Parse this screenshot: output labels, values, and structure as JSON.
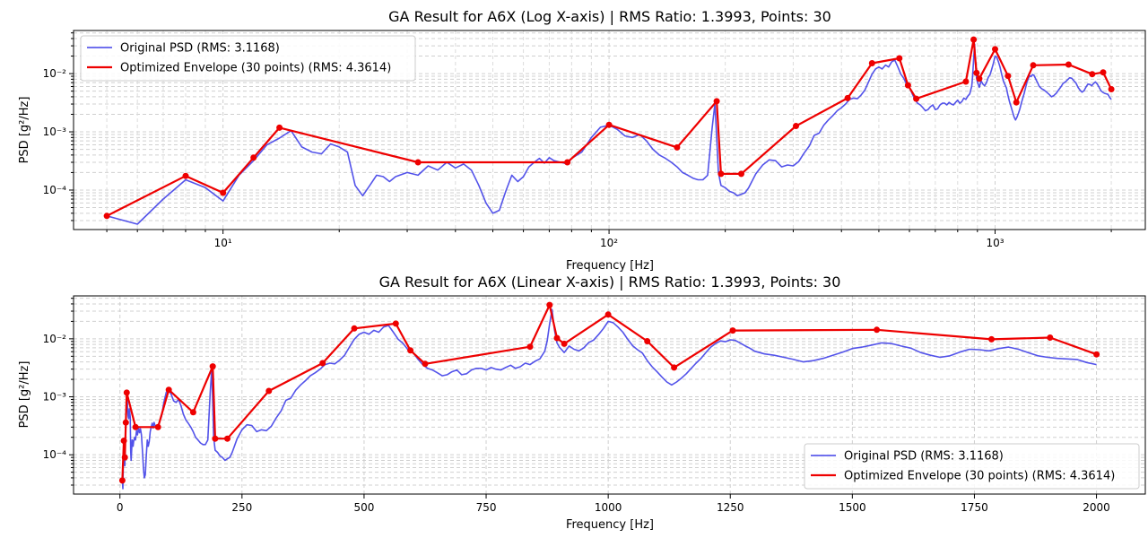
{
  "charts": [
    {
      "title": "GA Result for A6X (Log X-axis) | RMS Ratio: 1.3993, Points: 30",
      "xlabel": "Frequency [Hz]",
      "ylabel": "PSD [g²/Hz]",
      "xscale": "log",
      "legend_position": "upper left"
    },
    {
      "title": "GA Result for A6X (Linear X-axis) | RMS Ratio: 1.3993, Points: 30",
      "xlabel": "Frequency [Hz]",
      "ylabel": "PSD [g²/Hz]",
      "xscale": "linear",
      "legend_position": "lower right"
    }
  ],
  "chart_data": [
    {
      "type": "line",
      "title": "GA Result for A6X (Log X-axis) | RMS Ratio: 1.3993, Points: 30",
      "xlabel": "Frequency [Hz]",
      "ylabel": "PSD [g²/Hz]",
      "xscale": "log",
      "yscale": "log",
      "xlim": [
        4.1,
        2450
      ],
      "ylim": [
        2.1e-05,
        0.055
      ],
      "xticks": [
        10,
        100,
        1000
      ],
      "xtick_labels": [
        "10¹",
        "10²",
        "10³"
      ],
      "yticks": [
        0.0001,
        0.001,
        0.01
      ],
      "ytick_labels": [
        "10⁻⁴",
        "10⁻³",
        "10⁻²"
      ],
      "grid": true,
      "legend": "upper-left",
      "series": [
        {
          "name": "Original PSD (RMS: 3.1168)",
          "color": "#4040e8",
          "x": [
            5,
            6,
            7,
            8,
            9,
            10,
            11,
            12,
            13,
            14,
            15,
            16,
            17,
            18,
            19,
            20,
            21,
            22,
            23,
            24,
            25,
            26,
            27,
            28,
            30,
            32,
            34,
            36,
            38,
            40,
            42,
            44,
            46,
            48,
            50,
            52,
            54,
            56,
            58,
            60,
            62,
            64,
            66,
            68,
            70,
            72,
            75,
            78,
            80,
            85,
            90,
            95,
            100,
            105,
            110,
            115,
            120,
            125,
            130,
            135,
            140,
            145,
            150,
            155,
            160,
            165,
            170,
            175,
            180,
            185,
            188,
            190,
            192,
            195,
            200,
            205,
            210,
            215,
            220,
            225,
            230,
            240,
            250,
            260,
            270,
            280,
            290,
            300,
            310,
            320,
            330,
            340,
            350,
            360,
            370,
            380,
            390,
            400,
            410,
            420,
            430,
            440,
            450,
            460,
            470,
            480,
            490,
            500,
            510,
            520,
            530,
            540,
            550,
            560,
            570,
            580,
            590,
            600,
            610,
            620,
            630,
            640,
            650,
            660,
            670,
            680,
            690,
            700,
            710,
            720,
            730,
            740,
            750,
            760,
            770,
            780,
            790,
            800,
            810,
            820,
            830,
            840,
            850,
            860,
            870,
            875,
            880,
            885,
            890,
            895,
            900,
            910,
            920,
            930,
            940,
            950,
            960,
            970,
            980,
            990,
            1000,
            1010,
            1020,
            1030,
            1040,
            1050,
            1060,
            1070,
            1080,
            1090,
            1100,
            1110,
            1120,
            1130,
            1140,
            1150,
            1160,
            1170,
            1180,
            1190,
            1200,
            1210,
            1220,
            1230,
            1240,
            1250,
            1260,
            1270,
            1280,
            1290,
            1300,
            1320,
            1340,
            1360,
            1380,
            1400,
            1420,
            1440,
            1460,
            1480,
            1500,
            1520,
            1540,
            1560,
            1580,
            1600,
            1620,
            1640,
            1660,
            1680,
            1700,
            1720,
            1740,
            1760,
            1780,
            1800,
            1820,
            1840,
            1860,
            1880,
            1900,
            1920,
            1940,
            1960,
            1980,
            2000
          ],
          "y": [
            3.6e-05,
            2.6e-05,
            7e-05,
            0.00015,
            0.00011,
            6.5e-05,
            0.00018,
            0.00032,
            0.0006,
            0.00078,
            0.00105,
            0.00055,
            0.00045,
            0.00042,
            0.00062,
            0.00055,
            0.00045,
            0.00012,
            8e-05,
            0.00012,
            0.00018,
            0.00017,
            0.00014,
            0.00017,
            0.0002,
            0.00018,
            0.00026,
            0.00022,
            0.0003,
            0.00024,
            0.00028,
            0.00022,
            0.00012,
            6e-05,
            4e-05,
            4.5e-05,
            9.5e-05,
            0.00018,
            0.00014,
            0.00017,
            0.00025,
            0.0003,
            0.00035,
            0.00029,
            0.00036,
            0.00032,
            0.0003,
            0.00028,
            0.00035,
            0.00045,
            0.0008,
            0.0012,
            0.0013,
            0.0011,
            0.00085,
            0.0008,
            0.0009,
            0.0007,
            0.0005,
            0.0004,
            0.00035,
            0.0003,
            0.00025,
            0.0002,
            0.00018,
            0.00016,
            0.00015,
            0.00015,
            0.00018,
            0.0012,
            0.003,
            0.0008,
            0.0002,
            0.00012,
            0.00011,
            9.5e-05,
            9e-05,
            8e-05,
            8.5e-05,
            9e-05,
            0.00011,
            0.00019,
            0.00027,
            0.00033,
            0.00032,
            0.00025,
            0.00027,
            0.00026,
            0.00031,
            0.00043,
            0.00057,
            0.00087,
            0.00095,
            0.0013,
            0.0016,
            0.0019,
            0.0023,
            0.0026,
            0.003,
            0.0036,
            0.0038,
            0.0037,
            0.0043,
            0.0052,
            0.0072,
            0.0098,
            0.012,
            0.013,
            0.012,
            0.014,
            0.013,
            0.016,
            0.017,
            0.013,
            0.0098,
            0.0083,
            0.0065,
            0.0058,
            0.0045,
            0.0036,
            0.0031,
            0.0029,
            0.0026,
            0.0023,
            0.0024,
            0.0027,
            0.0029,
            0.0024,
            0.0025,
            0.0029,
            0.0031,
            0.0031,
            0.0029,
            0.0032,
            0.003,
            0.0029,
            0.0032,
            0.0035,
            0.0031,
            0.0033,
            0.0038,
            0.0036,
            0.0041,
            0.0045,
            0.0061,
            0.0092,
            0.018,
            0.032,
            0.014,
            0.0085,
            0.0072,
            0.0058,
            0.0075,
            0.0066,
            0.0062,
            0.007,
            0.0086,
            0.0095,
            0.0118,
            0.015,
            0.02,
            0.019,
            0.016,
            0.013,
            0.0098,
            0.0076,
            0.0065,
            0.0057,
            0.0042,
            0.0033,
            0.0027,
            0.0022,
            0.0018,
            0.0016,
            0.0018,
            0.0021,
            0.0025,
            0.0031,
            0.0038,
            0.0046,
            0.0058,
            0.0072,
            0.0083,
            0.0092,
            0.0089,
            0.0096,
            0.0094,
            0.0085,
            0.0076,
            0.0069,
            0.0061,
            0.0055,
            0.0052,
            0.0048,
            0.0044,
            0.004,
            0.0042,
            0.0046,
            0.0052,
            0.0059,
            0.0068,
            0.0072,
            0.0078,
            0.0085,
            0.0083,
            0.0075,
            0.0069,
            0.0058,
            0.0052,
            0.0048,
            0.0051,
            0.0059,
            0.0066,
            0.0065,
            0.0062,
            0.0068,
            0.0072,
            0.0066,
            0.0058,
            0.0051,
            0.0048,
            0.0046,
            0.0045,
            0.0044,
            0.0039,
            0.0036
          ]
        },
        {
          "name": "Optimized Envelope (30 points) (RMS: 4.3614)",
          "color": "#ee0000",
          "x": [
            5,
            8,
            10,
            12,
            14,
            32,
            78,
            100,
            150,
            190,
            195,
            220,
            305,
            415,
            480,
            565,
            595,
            625,
            840,
            880,
            895,
            910,
            1000,
            1080,
            1135,
            1255,
            1550,
            1785,
            1905,
            2000
          ],
          "y": [
            3.6e-05,
            0.000175,
            9e-05,
            0.00036,
            0.00118,
            0.0003,
            0.0003,
            0.00132,
            0.00054,
            0.00335,
            0.00019,
            0.00019,
            0.00126,
            0.0038,
            0.0151,
            0.0183,
            0.0063,
            0.0037,
            0.0073,
            0.0384,
            0.0103,
            0.0082,
            0.0262,
            0.0091,
            0.0032,
            0.0139,
            0.0143,
            0.0098,
            0.0105,
            0.0054
          ]
        }
      ]
    },
    {
      "type": "line",
      "title": "GA Result for A6X (Linear X-axis) | RMS Ratio: 1.3993, Points: 30",
      "xlabel": "Frequency [Hz]",
      "ylabel": "PSD [g²/Hz]",
      "xscale": "linear",
      "yscale": "log",
      "xlim": [
        -95,
        2100
      ],
      "ylim": [
        2.1e-05,
        0.055
      ],
      "xticks": [
        0,
        250,
        500,
        750,
        1000,
        1250,
        1500,
        1750,
        2000
      ],
      "xtick_labels": [
        "0",
        "250",
        "500",
        "750",
        "1000",
        "1250",
        "1500",
        "1750",
        "2000"
      ],
      "yticks": [
        0.0001,
        0.001,
        0.01
      ],
      "ytick_labels": [
        "10⁻⁴",
        "10⁻³",
        "10⁻²"
      ],
      "grid": true,
      "legend": "lower-right",
      "series_ref": "same as chart 1"
    }
  ]
}
